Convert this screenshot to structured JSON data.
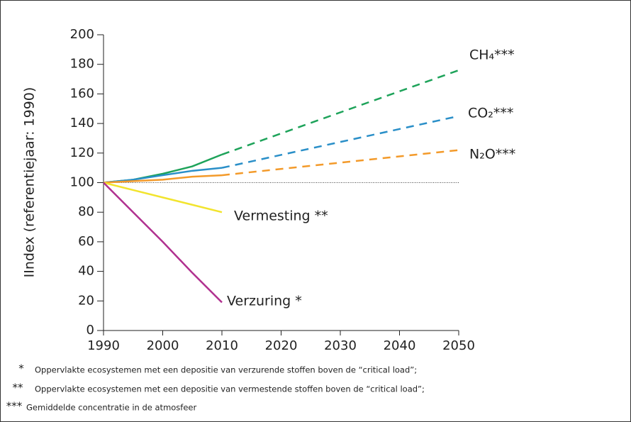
{
  "chart_data": {
    "type": "line",
    "ylabel": "IIndex (referentiejaar: 1990)",
    "x": [
      1990,
      1995,
      2000,
      2005,
      2010,
      2050
    ],
    "xlim": [
      1990,
      2050
    ],
    "xticks": [
      1990,
      2000,
      2010,
      2020,
      2030,
      2040,
      2050
    ],
    "ylim": [
      0,
      200
    ],
    "yticks": [
      0,
      20,
      40,
      60,
      80,
      100,
      120,
      140,
      160,
      180,
      200
    ],
    "reference_line": 100,
    "series": [
      {
        "name": "CH₄***",
        "color": "#1ea35a",
        "values": [
          100,
          102,
          106,
          111,
          119,
          null
        ],
        "projection": [
          null,
          null,
          null,
          null,
          119,
          176
        ]
      },
      {
        "name": "CO₂***",
        "color": "#2a8fc8",
        "values": [
          100,
          102,
          105,
          108,
          110,
          null
        ],
        "projection": [
          null,
          null,
          null,
          null,
          110,
          145
        ]
      },
      {
        "name": "N₂O***",
        "color": "#f39a2a",
        "values": [
          100,
          101,
          102,
          104,
          105,
          null
        ],
        "projection": [
          null,
          null,
          null,
          null,
          105,
          122
        ]
      },
      {
        "name": "Vermesting **",
        "color": "#f2e42e",
        "values": [
          100,
          95,
          90,
          85,
          80,
          null
        ]
      },
      {
        "name": "Verzuring *",
        "color": "#b0308f",
        "values": [
          100,
          80,
          60,
          39,
          19,
          null
        ]
      }
    ],
    "footnotes": [
      {
        "marker": "*",
        "text": "Oppervlakte ecosystemen met een depositie van verzurende stoffen boven de “critical load”;"
      },
      {
        "marker": "**",
        "text": "Oppervlakte ecosystemen met een depositie van vermestende stoffen boven de “critical load”;"
      },
      {
        "marker": "***",
        "text": "Gemiddelde concentratie in de atmosfeer"
      }
    ]
  }
}
